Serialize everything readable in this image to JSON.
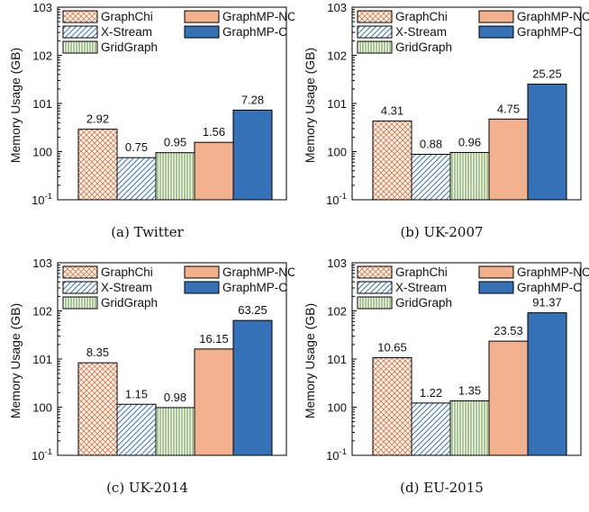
{
  "legend_entries": [
    "GraphChi",
    "X-Stream",
    "GridGraph",
    "GraphMP-NC",
    "GraphMP-C"
  ],
  "chart_data": [
    {
      "type": "bar",
      "caption": "(a) Twitter",
      "ylabel": "Memory Usage (GB)",
      "yscale": "log",
      "ylim": [
        0.1,
        1000
      ],
      "yticks": [
        "10-1",
        "100",
        "101",
        "102",
        "103"
      ],
      "legend_placement": "top",
      "series": [
        {
          "name": "GraphChi",
          "values": [
            2.92
          ],
          "labels": [
            "2.92"
          ],
          "pattern": "crosshatch",
          "color": "#e8804a"
        },
        {
          "name": "X-Stream",
          "values": [
            0.75
          ],
          "labels": [
            "0.75"
          ],
          "pattern": "diagonal",
          "color": "#3a74b8"
        },
        {
          "name": "GridGraph",
          "values": [
            0.95
          ],
          "labels": [
            "0.95"
          ],
          "pattern": "vertical",
          "color": "#5a9a32"
        },
        {
          "name": "GraphMP-NC",
          "values": [
            1.56
          ],
          "labels": [
            "1.56"
          ],
          "pattern": "solid",
          "color": "#f3b08c"
        },
        {
          "name": "GraphMP-C",
          "values": [
            7.28
          ],
          "labels": [
            "7.28"
          ],
          "pattern": "solid",
          "color": "#3471b6"
        }
      ]
    },
    {
      "type": "bar",
      "caption": "(b) UK-2007",
      "ylabel": "Memory Usage (GB)",
      "yscale": "log",
      "ylim": [
        0.1,
        1000
      ],
      "yticks": [
        "10-1",
        "100",
        "101",
        "102",
        "103"
      ],
      "legend_placement": "top",
      "series": [
        {
          "name": "GraphChi",
          "values": [
            4.31
          ],
          "labels": [
            "4.31"
          ],
          "pattern": "crosshatch",
          "color": "#e8804a"
        },
        {
          "name": "X-Stream",
          "values": [
            0.88
          ],
          "labels": [
            "0.88"
          ],
          "pattern": "diagonal",
          "color": "#3a74b8"
        },
        {
          "name": "GridGraph",
          "values": [
            0.96
          ],
          "labels": [
            "0.96"
          ],
          "pattern": "vertical",
          "color": "#5a9a32"
        },
        {
          "name": "GraphMP-NC",
          "values": [
            4.75
          ],
          "labels": [
            "4.75"
          ],
          "pattern": "solid",
          "color": "#f3b08c"
        },
        {
          "name": "GraphMP-C",
          "values": [
            25.25
          ],
          "labels": [
            "25.25"
          ],
          "pattern": "solid",
          "color": "#3471b6"
        }
      ]
    },
    {
      "type": "bar",
      "caption": "(c) UK-2014",
      "ylabel": "Memory Usage (GB)",
      "yscale": "log",
      "ylim": [
        0.1,
        1000
      ],
      "yticks": [
        "10-1",
        "100",
        "101",
        "102",
        "103"
      ],
      "legend_placement": "top",
      "series": [
        {
          "name": "GraphChi",
          "values": [
            8.35
          ],
          "labels": [
            "8.35"
          ],
          "pattern": "crosshatch",
          "color": "#e8804a"
        },
        {
          "name": "X-Stream",
          "values": [
            1.15
          ],
          "labels": [
            "1.15"
          ],
          "pattern": "diagonal",
          "color": "#3a74b8"
        },
        {
          "name": "GridGraph",
          "values": [
            0.98
          ],
          "labels": [
            "0.98"
          ],
          "pattern": "vertical",
          "color": "#5a9a32"
        },
        {
          "name": "GraphMP-NC",
          "values": [
            16.15
          ],
          "labels": [
            "16.15"
          ],
          "pattern": "solid",
          "color": "#f3b08c"
        },
        {
          "name": "GraphMP-C",
          "values": [
            63.25
          ],
          "labels": [
            "63.25"
          ],
          "pattern": "solid",
          "color": "#3471b6"
        }
      ]
    },
    {
      "type": "bar",
      "caption": "(d) EU-2015",
      "ylabel": "Memory Usage (GB)",
      "yscale": "log",
      "ylim": [
        0.1,
        1000
      ],
      "yticks": [
        "10-1",
        "100",
        "101",
        "102",
        "103"
      ],
      "legend_placement": "top",
      "series": [
        {
          "name": "GraphChi",
          "values": [
            10.65
          ],
          "labels": [
            "10.65"
          ],
          "pattern": "crosshatch",
          "color": "#e8804a"
        },
        {
          "name": "X-Stream",
          "values": [
            1.22
          ],
          "labels": [
            "1.22"
          ],
          "pattern": "diagonal",
          "color": "#3a74b8"
        },
        {
          "name": "GridGraph",
          "values": [
            1.35
          ],
          "labels": [
            "1.35"
          ],
          "pattern": "vertical",
          "color": "#5a9a32"
        },
        {
          "name": "GraphMP-NC",
          "values": [
            23.53
          ],
          "labels": [
            "23.53"
          ],
          "pattern": "solid",
          "color": "#f3b08c"
        },
        {
          "name": "GraphMP-C",
          "values": [
            91.37
          ],
          "labels": [
            "91.37"
          ],
          "pattern": "solid",
          "color": "#3471b6"
        }
      ]
    }
  ]
}
